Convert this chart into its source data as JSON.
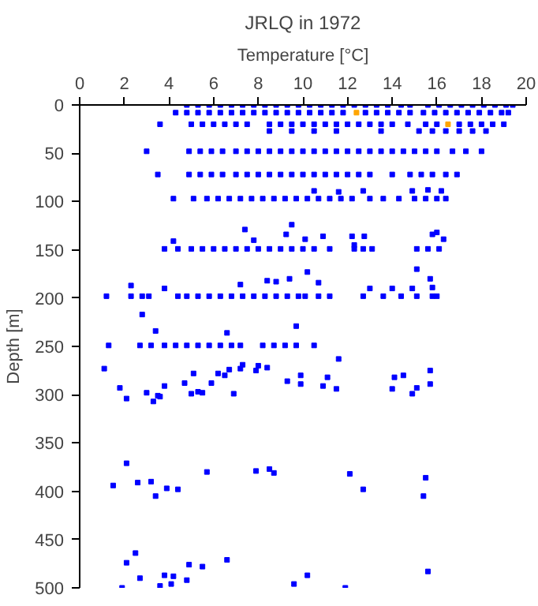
{
  "chart_data": {
    "type": "scatter",
    "title": "JRLQ in 1972",
    "xlabel": "Temperature [°C]",
    "ylabel": "Depth [m]",
    "xlim": [
      0,
      20
    ],
    "xticks": [
      0,
      2,
      4,
      6,
      8,
      10,
      12,
      14,
      16,
      18,
      20
    ],
    "ylim": [
      500,
      0
    ],
    "yticks": [
      0,
      50,
      100,
      150,
      200,
      250,
      300,
      350,
      400,
      450,
      500
    ],
    "marker": "square",
    "series": [
      {
        "color": "#0000ff",
        "x": [
          4.8,
          5.3,
          5.8,
          6.3,
          6.8,
          7.3,
          7.8,
          8.3,
          8.8,
          9.3,
          9.8,
          10.3,
          10.8,
          11.3,
          11.8,
          12.3,
          12.8,
          13.3,
          13.8,
          14.4,
          14.8,
          15.6,
          16.1,
          16.6,
          17.1,
          17.6,
          18.1,
          18.6,
          19.1,
          19.4
        ],
        "values": [
          0,
          0,
          0,
          0,
          0,
          0,
          0,
          0,
          0,
          0,
          0,
          0,
          0,
          0,
          0,
          0,
          0,
          0,
          0,
          0,
          0,
          0,
          0,
          0,
          0,
          0,
          0,
          0,
          0,
          0
        ]
      },
      {
        "color": "#0000ff",
        "x": [
          4.3,
          4.8,
          5.3,
          5.8,
          6.3,
          6.8,
          7.3,
          7.8,
          8.3,
          8.8,
          9.3,
          9.8,
          10.3,
          10.8,
          11.3,
          11.8,
          12.8,
          13.3,
          13.8,
          14.3,
          14.8,
          15.4,
          15.9,
          16.4,
          16.9,
          17.4,
          17.9,
          18.4,
          18.9,
          19.2
        ],
        "values": [
          8,
          8,
          8,
          8,
          8,
          8,
          8,
          8,
          8,
          8,
          8,
          8,
          8,
          8,
          8,
          8,
          8,
          8,
          8,
          8,
          8,
          8,
          8,
          8,
          8,
          8,
          8,
          8,
          8,
          8
        ]
      },
      {
        "color": "#0000ff",
        "x": [
          3.6,
          5.0,
          5.5,
          6.0,
          6.5,
          7.0,
          7.5,
          8.5,
          9.0,
          9.5,
          10.0,
          10.5,
          11.0,
          11.5,
          12.0,
          12.5,
          13.0,
          13.5,
          14.0,
          14.7,
          15.5,
          16.0,
          16.5,
          17.0,
          17.5,
          18.0,
          18.5,
          19.0
        ],
        "values": [
          20,
          20,
          20,
          20,
          20,
          20,
          20,
          20,
          20,
          20,
          20,
          20,
          20,
          20,
          20,
          20,
          20,
          20,
          20,
          20,
          20,
          20,
          null,
          20,
          20,
          20,
          20,
          20
        ]
      },
      {
        "color": "#0000ff",
        "x": [
          8.5,
          9.5,
          10.5,
          11.5,
          13.5,
          15.2,
          15.8,
          16.4,
          17.0,
          17.6,
          18.2
        ],
        "values": [
          27,
          27,
          27,
          27,
          27,
          27,
          27,
          27,
          27,
          27,
          27
        ]
      },
      {
        "color": "#0000ff",
        "x": [
          3.0,
          4.9,
          5.4,
          5.9,
          6.4,
          7.0,
          7.5,
          8.0,
          8.5,
          9.0,
          9.5,
          10.0,
          10.5,
          11.0,
          11.5,
          12.0,
          12.5,
          13.0,
          13.5,
          14.0,
          14.5,
          15.0,
          15.5,
          16.0,
          16.7,
          17.3,
          18.0
        ],
        "values": [
          48,
          48,
          48,
          48,
          48,
          48,
          48,
          48,
          48,
          48,
          48,
          48,
          48,
          48,
          48,
          48,
          48,
          48,
          48,
          48,
          48,
          48,
          48,
          48,
          48,
          48,
          48
        ]
      },
      {
        "color": "#0000ff",
        "x": [
          3.5,
          4.9,
          5.4,
          5.9,
          6.4,
          7.0,
          7.5,
          8.0,
          8.5,
          9.0,
          9.5,
          10.0,
          10.5,
          11.0,
          11.5,
          12.0,
          12.5,
          13.0,
          14.0,
          14.8,
          15.3,
          15.8,
          16.4,
          16.9
        ],
        "values": [
          72,
          72,
          72,
          72,
          72,
          72,
          72,
          72,
          72,
          72,
          72,
          72,
          72,
          72,
          72,
          72,
          72,
          72,
          72,
          72,
          72,
          72,
          72,
          72
        ]
      },
      {
        "color": "#0000ff",
        "x": [
          4.2,
          5.1,
          5.7,
          6.2,
          6.7,
          7.2,
          7.7,
          8.2,
          8.7,
          9.2,
          9.7,
          10.2,
          10.7,
          11.2,
          11.7,
          12.2,
          13.0,
          13.6,
          14.3,
          15.0,
          15.5,
          16.0,
          16.4
        ],
        "values": [
          97,
          97,
          97,
          97,
          97,
          97,
          97,
          97,
          97,
          97,
          97,
          97,
          97,
          97,
          97,
          97,
          97,
          97,
          97,
          97,
          97,
          97,
          97
        ]
      },
      {
        "color": "#0000ff",
        "x": [
          3.8,
          4.4,
          5.0,
          5.5,
          6.0,
          6.5,
          7.0,
          7.5,
          8.0,
          8.5,
          9.0,
          9.5,
          10.0,
          10.5,
          11.2,
          12.3,
          12.7,
          13.1,
          15.1,
          15.6,
          16.1
        ],
        "values": [
          149,
          149,
          149,
          149,
          149,
          149,
          149,
          149,
          149,
          149,
          149,
          149,
          149,
          149,
          149,
          149,
          149,
          149,
          149,
          149,
          149
        ]
      },
      {
        "color": "#0000ff",
        "x": [
          1.2,
          2.3,
          2.8,
          3.1,
          4.4,
          4.8,
          5.3,
          5.8,
          6.3,
          6.8,
          7.3,
          7.8,
          8.3,
          8.8,
          9.3,
          9.8,
          10.1,
          10.7,
          11.2,
          12.7,
          13.6,
          14.4,
          15.1,
          15.8,
          16.0
        ],
        "values": [
          198,
          198,
          198,
          198,
          198,
          198,
          198,
          198,
          198,
          198,
          198,
          198,
          198,
          198,
          198,
          198,
          198,
          198,
          198,
          198,
          198,
          198,
          198,
          198,
          198
        ]
      },
      {
        "color": "#0000ff",
        "x": [
          1.3,
          2.7,
          3.2,
          3.8,
          4.3,
          4.8,
          5.3,
          5.8,
          6.3,
          6.8,
          7.2,
          8.2,
          8.7,
          9.2,
          9.7,
          10.5
        ],
        "values": [
          249,
          249,
          249,
          249,
          249,
          249,
          249,
          249,
          249,
          249,
          249,
          249,
          249,
          249,
          249,
          249
        ]
      },
      {
        "color": "#0000ff",
        "x": [
          10.5,
          11.6,
          12.7,
          14.9,
          15.6,
          16.2,
          7.4,
          9.5,
          9.25,
          4.2,
          7.8,
          10.1,
          10.9,
          12.2,
          12.75,
          15.8,
          16.0,
          16.3,
          12.3,
          2.3,
          3.8,
          7.2,
          8.4,
          8.8,
          9.4,
          10.2,
          10.7,
          13.0,
          14.0,
          14.9,
          15.1,
          15.7,
          15.8,
          2.8,
          3.4,
          9.7,
          6.6,
          11.6,
          1.1,
          1.8,
          2.1,
          3.0,
          3.8,
          3.5,
          4.7,
          5.1,
          5.3,
          5.9,
          6.2,
          6.5,
          6.7,
          6.9,
          7.2,
          7.3,
          7.9,
          8.0,
          8.4,
          9.3,
          9.9,
          9.9,
          10.9,
          11.1,
          11.5,
          14.0,
          14.1,
          14.5,
          14.9,
          15.1,
          15.7,
          15.7,
          3.3,
          3.6,
          5.0,
          5.5,
          2.1,
          1.5,
          2.6,
          3.2,
          3.4,
          3.9,
          4.4,
          5.7,
          7.9,
          8.5,
          8.7,
          12.1,
          12.7,
          15.5,
          15.4,
          2.5,
          2.1,
          2.7,
          1.9,
          3.6,
          3.8,
          4.1,
          4.2,
          4.8,
          4.9,
          5.5,
          6.6,
          9.6,
          10.2,
          11.9,
          15.6
        ],
        "values": [
          89,
          90,
          89,
          89,
          88,
          89,
          129,
          124,
          134,
          141,
          140,
          139,
          136,
          136,
          136,
          134,
          132,
          139,
          145,
          187,
          190,
          186,
          182,
          183,
          180,
          173,
          184,
          190,
          190,
          190,
          170,
          180,
          189,
          217,
          234,
          229,
          236,
          263,
          273,
          293,
          304,
          298,
          291,
          301,
          288,
          278,
          297,
          288,
          278,
          280,
          274,
          299,
          273,
          269,
          275,
          270,
          272,
          286,
          280,
          289,
          291,
          282,
          294,
          294,
          282,
          280,
          299,
          293,
          275,
          289,
          307,
          302,
          299,
          298,
          371,
          394,
          391,
          390,
          405,
          397,
          398,
          380,
          379,
          377,
          381,
          382,
          398,
          386,
          405,
          464,
          474,
          490,
          500,
          498,
          487,
          496,
          488,
          492,
          476,
          478,
          471,
          496,
          487,
          500,
          483
        ]
      },
      {
        "color": "#ffa500",
        "x": [
          12.4,
          16.5
        ],
        "values": [
          8,
          20
        ]
      }
    ]
  }
}
